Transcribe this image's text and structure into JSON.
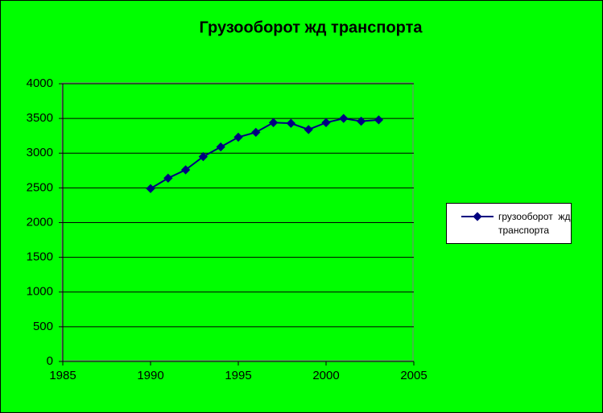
{
  "chart_data": {
    "type": "line",
    "title": "Грузооборот  жд транспорта",
    "x": [
      1990,
      1991,
      1992,
      1993,
      1994,
      1995,
      1996,
      1997,
      1998,
      1999,
      2000,
      2001,
      2002,
      2003
    ],
    "series": [
      {
        "name": "грузооборот  жд транспорта",
        "color": "#000080",
        "values": [
          2490,
          2640,
          2760,
          2950,
          3090,
          3230,
          3300,
          3440,
          3430,
          3340,
          3440,
          3500,
          3460,
          3480
        ]
      }
    ],
    "xlim": [
      1985,
      2005
    ],
    "xticks": [
      1985,
      1990,
      1995,
      2000,
      2005
    ],
    "ylim": [
      0,
      4000
    ],
    "yticks": [
      0,
      500,
      1000,
      1500,
      2000,
      2500,
      3000,
      3500,
      4000
    ],
    "grid": true,
    "legend": "right"
  }
}
